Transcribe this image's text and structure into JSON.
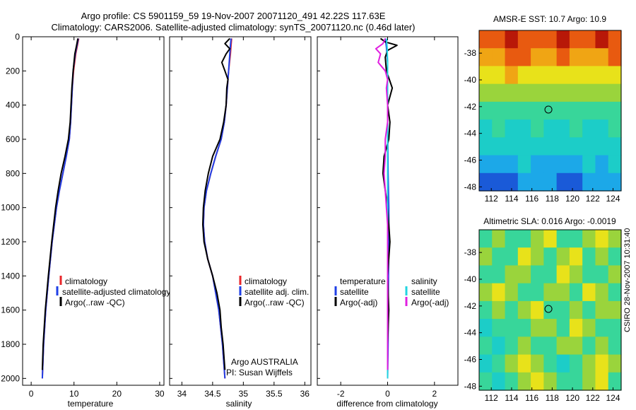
{
  "header": {
    "title_line1": "Argo profile: CS 5901159_59 19-Nov-2007 20071120_491 42.22S 117.63E",
    "title_line2": "Climatology: CARS2006. Satellite-adjusted climatology: synTS_20071120.nc (0.46d later)"
  },
  "side_label": "CSIRO 28-Nov-2007 10:31:40",
  "colors": {
    "climatology": "#e8262a",
    "satellite": "#1f3fe6",
    "argo": "#000000",
    "satellite_diff": "#22d4e0",
    "argo_diff": "#e020e0"
  },
  "chart_data": [
    {
      "type": "line",
      "name": "temperature-panel",
      "xlabel": "temperature",
      "xlim": [
        -2,
        31
      ],
      "ylim": [
        2040,
        0
      ],
      "xticks": [
        "0",
        "10",
        "20",
        "30"
      ],
      "xtick_values": [
        0,
        10,
        20,
        30
      ],
      "yticks": [
        "0",
        "200",
        "400",
        "600",
        "800",
        "1000",
        "1200",
        "1400",
        "1600",
        "1800",
        "2000"
      ],
      "ytick_values": [
        0,
        200,
        400,
        600,
        800,
        1000,
        1200,
        1400,
        1600,
        1800,
        2000
      ],
      "legend": [
        "climatology",
        "satellite-adjusted climatology",
        "Argo(..raw -QC)"
      ],
      "series": [
        {
          "name": "climatology",
          "color": "#e8262a",
          "depth": [
            10,
            50,
            100,
            200,
            300,
            400,
            500,
            600,
            700,
            800,
            900,
            1000,
            1200,
            1400,
            1600,
            1800,
            2000
          ],
          "values": [
            11.1,
            10.8,
            10.4,
            9.9,
            9.6,
            9.4,
            9.2,
            8.9,
            8.2,
            7.4,
            6.6,
            5.9,
            4.9,
            4.1,
            3.4,
            2.9,
            2.6
          ]
        },
        {
          "name": "satellite-adjusted climatology",
          "color": "#1f3fe6",
          "depth": [
            10,
            50,
            100,
            200,
            300,
            400,
            500,
            600,
            700,
            800,
            900,
            1000,
            1200,
            1400,
            1600,
            1800,
            2000
          ],
          "values": [
            11.0,
            10.7,
            10.3,
            9.8,
            9.6,
            9.4,
            9.2,
            8.9,
            8.2,
            7.4,
            6.6,
            5.9,
            4.9,
            4.1,
            3.4,
            2.9,
            2.6
          ]
        },
        {
          "name": "Argo(..raw -QC)",
          "color": "#000000",
          "depth": [
            10,
            50,
            100,
            200,
            300,
            400,
            500,
            600,
            700,
            800,
            900,
            1000,
            1200,
            1400,
            1600,
            1800,
            1950
          ],
          "values": [
            10.9,
            10.6,
            10.2,
            9.8,
            9.5,
            9.3,
            9.1,
            8.7,
            7.9,
            7.0,
            6.3,
            5.7,
            4.8,
            4.0,
            3.3,
            2.8,
            2.6
          ]
        }
      ]
    },
    {
      "type": "line",
      "name": "salinity-panel",
      "xlabel": "salinity",
      "xlim": [
        33.8,
        36.1
      ],
      "ylim": [
        2040,
        0
      ],
      "xticks": [
        "34",
        "34.5",
        "35",
        "35.5",
        "36"
      ],
      "xtick_values": [
        34,
        34.5,
        35,
        35.5,
        36
      ],
      "legend": [
        "climatology",
        "satellite adj. clim.",
        "Argo(..raw -QC)"
      ],
      "annotation": [
        "Argo AUSTRALIA",
        "PI: Susan Wijffels"
      ],
      "series": [
        {
          "name": "climatology",
          "color": "#e8262a",
          "depth": [
            10,
            50,
            100,
            200,
            300,
            400,
            500,
            600,
            700,
            800,
            900,
            1000,
            1100,
            1200,
            1300,
            1400,
            1600,
            1800,
            2000
          ],
          "values": [
            34.81,
            34.8,
            34.79,
            34.76,
            34.74,
            34.72,
            34.69,
            34.64,
            34.55,
            34.47,
            34.4,
            34.36,
            34.35,
            34.37,
            34.42,
            34.5,
            34.6,
            34.66,
            34.7
          ]
        },
        {
          "name": "satellite adj. clim.",
          "color": "#1f3fe6",
          "depth": [
            10,
            50,
            100,
            200,
            300,
            400,
            500,
            600,
            700,
            800,
            900,
            1000,
            1100,
            1200,
            1300,
            1400,
            1600,
            1800,
            2000
          ],
          "values": [
            34.8,
            34.79,
            34.78,
            34.76,
            34.74,
            34.72,
            34.69,
            34.64,
            34.55,
            34.47,
            34.4,
            34.36,
            34.35,
            34.37,
            34.42,
            34.5,
            34.6,
            34.66,
            34.7
          ]
        },
        {
          "name": "Argo(..raw -QC)",
          "color": "#000000",
          "depth": [
            10,
            40,
            70,
            100,
            150,
            200,
            250,
            300,
            400,
            500,
            600,
            700,
            800,
            900,
            1000,
            1100,
            1200,
            1300,
            1400,
            1500,
            1600,
            1700,
            1800,
            1900,
            1950
          ],
          "values": [
            34.78,
            34.7,
            34.78,
            34.72,
            34.65,
            34.7,
            34.75,
            34.73,
            34.72,
            34.68,
            34.62,
            34.5,
            34.43,
            34.38,
            34.35,
            34.34,
            34.36,
            34.42,
            34.5,
            34.57,
            34.62,
            34.64,
            34.67,
            34.69,
            34.7
          ]
        }
      ]
    },
    {
      "type": "line",
      "name": "difference-panel",
      "xlabel": "difference from climatology",
      "xlim": [
        -3,
        3
      ],
      "ylim": [
        2040,
        0
      ],
      "xticks": [
        "-2",
        "0",
        "2"
      ],
      "xtick_values": [
        -2,
        0,
        2
      ],
      "legend_left_title": "temperature",
      "legend_right_title": "salinity",
      "legend_left": [
        "satellite",
        "Argo(-adj)"
      ],
      "legend_right": [
        "satellite",
        "Argo(-adj)"
      ],
      "series": [
        {
          "name": "temperature satellite",
          "color": "#1f3fe6",
          "depth": [
            10,
            60,
            150,
            300,
            500,
            800,
            1000,
            1200,
            1500,
            1800,
            2000
          ],
          "values": [
            -0.1,
            -0.05,
            0.0,
            0.0,
            0.0,
            0.02,
            0.05,
            0.05,
            0.03,
            0.02,
            0.0
          ]
        },
        {
          "name": "temperature Argo(-adj)",
          "color": "#000000",
          "depth": [
            10,
            30,
            50,
            80,
            120,
            200,
            300,
            400,
            500,
            600,
            700,
            800,
            900,
            1000,
            1100,
            1200,
            1400,
            1600,
            1800,
            1950
          ],
          "values": [
            -0.3,
            -0.1,
            0.4,
            0.0,
            -0.1,
            -0.05,
            0.2,
            0.0,
            0.1,
            0.05,
            -0.15,
            -0.2,
            -0.1,
            0.0,
            0.05,
            0.1,
            0.0,
            0.05,
            0.0,
            0.0
          ]
        },
        {
          "name": "salinity satellite",
          "color": "#22d4e0",
          "depth": [
            10,
            60,
            150,
            300,
            500,
            800,
            1000,
            1200,
            1500,
            1800,
            2000
          ],
          "values": [
            -0.05,
            -0.02,
            0.0,
            0.0,
            0.0,
            0.0,
            0.0,
            0.0,
            0.0,
            0.0,
            0.0
          ]
        },
        {
          "name": "salinity Argo(-adj)",
          "color": "#e020e0",
          "depth": [
            10,
            40,
            70,
            100,
            150,
            200,
            250,
            300,
            400,
            500,
            600,
            700,
            800,
            900,
            1000,
            1100,
            1200,
            1400,
            1600,
            1800,
            1950
          ],
          "values": [
            -0.1,
            -0.2,
            -0.5,
            -0.3,
            -0.4,
            -0.1,
            0.0,
            -0.05,
            0.0,
            0.0,
            -0.1,
            -0.1,
            -0.15,
            -0.1,
            -0.05,
            0.0,
            0.0,
            0.0,
            0.0,
            0.0,
            0.0
          ]
        }
      ]
    },
    {
      "type": "heatmap",
      "name": "sst-map",
      "title": "AMSR-E SST: 10.7 Argo: 10.9",
      "xlim": [
        110.8,
        124.8
      ],
      "ylim": [
        -48.3,
        -36.3
      ],
      "xticks": [
        "112",
        "114",
        "116",
        "118",
        "120",
        "122",
        "124"
      ],
      "xtick_values": [
        112,
        114,
        116,
        118,
        120,
        122,
        124
      ],
      "yticks": [
        "-38",
        "-40",
        "-42",
        "-44",
        "-46",
        "-48"
      ],
      "ytick_values": [
        -38,
        -40,
        -42,
        -44,
        -46,
        -48
      ],
      "marker": {
        "lon": 117.63,
        "lat": -42.22
      },
      "colormap": [
        "#0a1a8c",
        "#1a5ad8",
        "#1ca8e8",
        "#1ccdc8",
        "#38d69a",
        "#9ad43c",
        "#e8e21a",
        "#f0a514",
        "#e85a10",
        "#b81808"
      ],
      "z": [
        [
          8,
          8,
          9,
          8,
          8,
          8,
          9,
          8,
          8,
          9,
          8
        ],
        [
          7,
          7,
          8,
          8,
          7,
          7,
          8,
          7,
          7,
          7,
          8
        ],
        [
          6,
          6,
          7,
          6,
          6,
          6,
          6,
          6,
          6,
          6,
          6
        ],
        [
          5,
          5,
          5,
          5,
          5,
          5,
          5,
          5,
          5,
          5,
          5
        ],
        [
          4,
          4,
          4,
          4,
          4,
          4,
          4,
          4,
          4,
          4,
          4
        ],
        [
          3,
          4,
          3,
          3,
          4,
          3,
          3,
          4,
          3,
          3,
          4
        ],
        [
          3,
          3,
          3,
          3,
          3,
          3,
          3,
          3,
          3,
          3,
          3
        ],
        [
          2,
          2,
          2,
          3,
          2,
          2,
          2,
          2,
          3,
          2,
          3
        ],
        [
          1,
          1,
          1,
          2,
          2,
          2,
          1,
          1,
          2,
          2,
          2
        ]
      ]
    },
    {
      "type": "heatmap",
      "name": "sla-map",
      "title": "Altimetric SLA: 0.016 Argo: -0.0019",
      "xlim": [
        110.8,
        124.8
      ],
      "ylim": [
        -48.3,
        -36.3
      ],
      "xticks": [
        "112",
        "114",
        "116",
        "118",
        "120",
        "122",
        "124"
      ],
      "xtick_values": [
        112,
        114,
        116,
        118,
        120,
        122,
        124
      ],
      "yticks": [
        "-38",
        "-40",
        "-42",
        "-44",
        "-46",
        "-48"
      ],
      "ytick_values": [
        -38,
        -40,
        -42,
        -44,
        -46,
        -48
      ],
      "marker": {
        "lon": 117.63,
        "lat": -42.22
      },
      "colormap": [
        "#0a1a8c",
        "#1a5ad8",
        "#1ca8e8",
        "#1ccdc8",
        "#38d69a",
        "#9ad43c",
        "#e8e21a",
        "#f0a514",
        "#e85a10",
        "#b81808"
      ],
      "z": [
        [
          4,
          5,
          4,
          4,
          5,
          6,
          4,
          4,
          5,
          6,
          5
        ],
        [
          5,
          4,
          4,
          6,
          5,
          4,
          5,
          6,
          4,
          5,
          4
        ],
        [
          4,
          4,
          5,
          5,
          4,
          4,
          6,
          5,
          4,
          4,
          5
        ],
        [
          5,
          6,
          5,
          4,
          4,
          5,
          5,
          4,
          6,
          5,
          4
        ],
        [
          4,
          5,
          4,
          5,
          6,
          4,
          4,
          5,
          4,
          5,
          5
        ],
        [
          3,
          4,
          4,
          4,
          5,
          5,
          4,
          6,
          5,
          4,
          4
        ],
        [
          4,
          3,
          4,
          5,
          4,
          4,
          5,
          5,
          4,
          5,
          4
        ],
        [
          3,
          4,
          5,
          6,
          5,
          4,
          3,
          4,
          5,
          6,
          5
        ],
        [
          4,
          3,
          4,
          5,
          6,
          5,
          4,
          4,
          5,
          6,
          4
        ]
      ]
    }
  ]
}
